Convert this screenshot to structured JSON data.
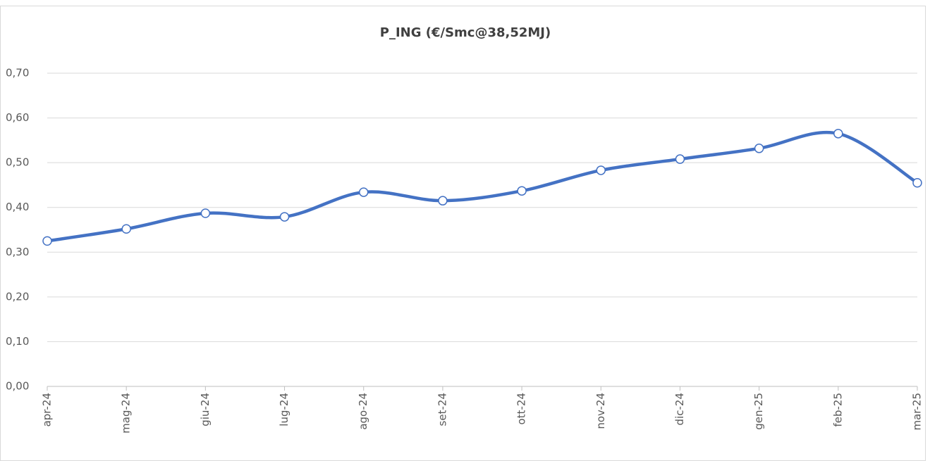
{
  "chart_data": {
    "type": "line",
    "title": "P_ING (€/Smc@38,52MJ)",
    "categories": [
      "apr-24",
      "mag-24",
      "giu-24",
      "lug-24",
      "ago-24",
      "set-24",
      "ott-24",
      "nov-24",
      "dic-24",
      "gen-25",
      "feb-25",
      "mar-25"
    ],
    "series": [
      {
        "name": "P_ING (€/Smc@38,52MJ)",
        "color": "#4472c4",
        "values": [
          0.325,
          0.352,
          0.387,
          0.379,
          0.434,
          0.415,
          0.437,
          0.483,
          0.508,
          0.532,
          0.565,
          0.455
        ]
      }
    ],
    "ylim": [
      0,
      0.7
    ],
    "yticks": [
      {
        "value": 0,
        "label": "0,00"
      },
      {
        "value": 0.1,
        "label": "0,10"
      },
      {
        "value": 0.2,
        "label": "0,20"
      },
      {
        "value": 0.3,
        "label": "0,30"
      },
      {
        "value": 0.4,
        "label": "0,40"
      },
      {
        "value": 0.5,
        "label": "0,50"
      },
      {
        "value": 0.6,
        "label": "0,60"
      },
      {
        "value": 0.7,
        "label": "0,70"
      }
    ],
    "grid": true,
    "smooth": true
  }
}
